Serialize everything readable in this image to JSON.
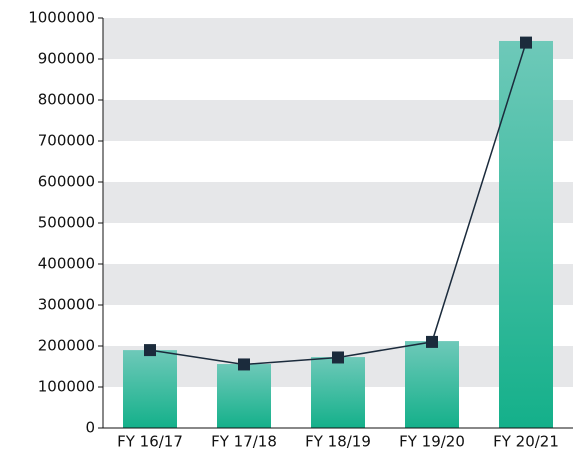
{
  "chart_data": {
    "type": "combo",
    "categories": [
      "FY 16/17",
      "FY 17/18",
      "FY 18/19",
      "FY 19/20",
      "FY 20/21"
    ],
    "series": [
      {
        "type": "bar",
        "color": "#14b08a",
        "values": [
          190000,
          156000,
          173000,
          212000,
          944000
        ]
      },
      {
        "type": "line",
        "color": "#1b2b3c",
        "values": [
          190000,
          155000,
          172000,
          210000,
          940000
        ]
      }
    ],
    "ylim": [
      0,
      1000000
    ],
    "yticks": [
      0,
      100000,
      200000,
      300000,
      400000,
      500000,
      600000,
      700000,
      800000,
      900000,
      1000000
    ],
    "banded_grid": true,
    "band_color": "#e6e7e9"
  }
}
